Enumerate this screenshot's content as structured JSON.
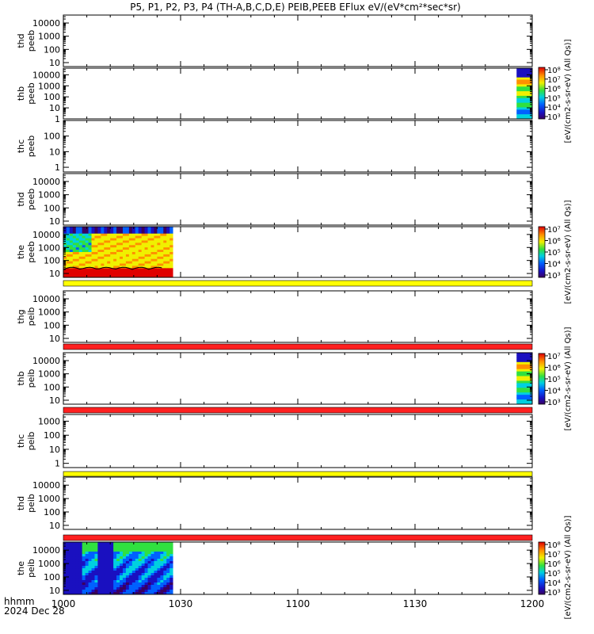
{
  "chart_data": {
    "type": "heatmap",
    "title": "P5, P1, P2, P3, P4 (TH-A,B,C,D,E) PEIB,PEEB EFlux eV/(eV*cm²*sec*sr)",
    "x_axis": {
      "start": "1000",
      "end": "1200",
      "ticks": [
        "1000",
        "1030",
        "1100",
        "1130",
        "1200"
      ],
      "label_line1": "hhmm",
      "label_line2": "2024 Dec 28"
    },
    "panels": [
      {
        "label1": "thd",
        "label2": "peeb",
        "ytick_labels": [
          "10000",
          "1000",
          "100",
          "10"
        ],
        "ylim": [
          5,
          40000
        ],
        "data": "none"
      },
      {
        "label1": "thb",
        "label2": "peeb",
        "ytick_labels": [
          "10000",
          "1000",
          "100",
          "10",
          "1"
        ],
        "ylim": [
          1,
          40000
        ],
        "data": "spectrogram",
        "data_x_range": [
          "1156",
          "1200"
        ]
      },
      {
        "label1": "thc",
        "label2": "peeb",
        "ytick_labels": [
          "100",
          "10",
          "1"
        ],
        "ylim": [
          0.5,
          1000
        ],
        "data": "none"
      },
      {
        "label1": "thd",
        "label2": "peeb",
        "ytick_labels": [
          "10000",
          "1000",
          "100",
          "10"
        ],
        "ylim": [
          5,
          40000
        ],
        "data": "none"
      },
      {
        "label1": "the",
        "label2": "peeb",
        "ytick_labels": [
          "10000",
          "1000",
          "100",
          "10"
        ],
        "ylim": [
          5,
          40000
        ],
        "data": "spectrogram",
        "data_x_range": [
          "1000",
          "1028"
        ]
      },
      {
        "label1": "thg",
        "label2": "peib",
        "ytick_labels": [
          "10000",
          "1000",
          "100",
          "10"
        ],
        "ylim": [
          5,
          40000
        ],
        "data": "none"
      },
      {
        "label1": "thb",
        "label2": "peib",
        "ytick_labels": [
          "10000",
          "1000",
          "100",
          "10"
        ],
        "ylim": [
          5,
          40000
        ],
        "data": "spectrogram",
        "data_x_range": [
          "1156",
          "1200"
        ]
      },
      {
        "label1": "thc",
        "label2": "peib",
        "ytick_labels": [
          "1000",
          "100",
          "10",
          "1"
        ],
        "ylim": [
          0.5,
          3000
        ],
        "data": "none"
      },
      {
        "label1": "thd",
        "label2": "peib",
        "ytick_labels": [
          "10000",
          "1000",
          "100",
          "10"
        ],
        "ylim": [
          5,
          40000
        ],
        "data": "none"
      },
      {
        "label1": "the",
        "label2": "peib",
        "ytick_labels": [
          "10000",
          "1000",
          "100",
          "10"
        ],
        "ylim": [
          5,
          40000
        ],
        "data": "spectrogram",
        "data_x_range": [
          "1000",
          "1028"
        ]
      }
    ],
    "colorbars": [
      {
        "tick_labels": [
          "10⁸",
          "10⁷",
          "10⁶",
          "10⁵",
          "10⁴",
          "10³"
        ]
      },
      {
        "tick_labels": [
          "10⁷",
          "10⁶",
          "10⁵",
          "10⁴",
          "10³"
        ]
      },
      {
        "tick_labels": [
          "10⁷",
          "10⁶",
          "10⁵",
          "10⁴",
          "10³"
        ]
      },
      {
        "tick_labels": [
          "10⁸",
          "10⁷",
          "10⁶",
          "10⁵",
          "10⁴",
          "10³"
        ]
      }
    ],
    "colorbar_labels": [
      "[eV/(cm2-s-sr-eV) (All Qs)]",
      "[eV/(cm2-s-sr-eV) (All Qs)]",
      "[eV/(cm2-s-sr-eV) (All Qs)]",
      "[eV/(cm2-s-sr-eV) (All Qs)]"
    ],
    "flag_bar_colors": [
      "#ffff00",
      "#ff2020",
      "#ff2020",
      "#ffff00",
      "#ff2020"
    ]
  }
}
